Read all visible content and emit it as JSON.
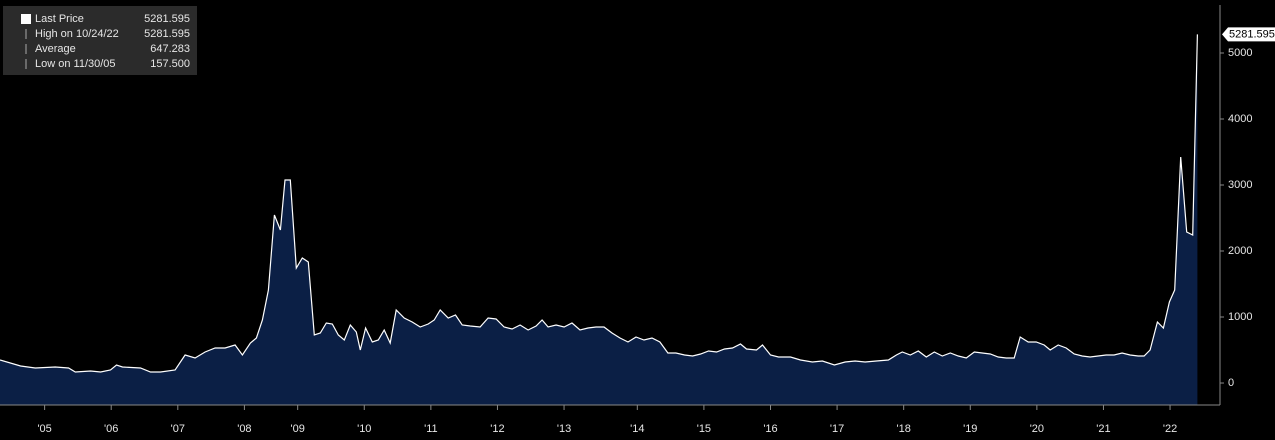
{
  "chart_data": {
    "type": "area",
    "legend": [
      {
        "label": "Last Price",
        "value": "5281.595"
      },
      {
        "label": "High on 10/24/22",
        "value": "5281.595"
      },
      {
        "label": "Average",
        "value": "647.283"
      },
      {
        "label": "Low on 11/30/05",
        "value": "157.500"
      }
    ],
    "x": [
      2004.83,
      2005.14,
      2005.36,
      2005.66,
      2005.86,
      2005.96,
      2006.19,
      2006.34,
      2006.49,
      2006.58,
      2006.67,
      2006.94,
      2007.09,
      2007.24,
      2007.46,
      2007.61,
      2007.76,
      2007.91,
      2008.06,
      2008.21,
      2008.36,
      2008.47,
      2008.59,
      2008.68,
      2008.77,
      2008.86,
      2008.95,
      2009.04,
      2009.11,
      2009.19,
      2009.28,
      2009.37,
      2009.46,
      2009.55,
      2009.64,
      2009.73,
      2009.82,
      2009.91,
      2010.0,
      2010.09,
      2010.18,
      2010.24,
      2010.32,
      2010.42,
      2010.51,
      2010.6,
      2010.69,
      2010.78,
      2010.9,
      2011.02,
      2011.14,
      2011.26,
      2011.35,
      2011.44,
      2011.56,
      2011.67,
      2011.77,
      2011.89,
      2012.04,
      2012.16,
      2012.28,
      2012.4,
      2012.52,
      2012.64,
      2012.76,
      2012.88,
      2012.97,
      2013.06,
      2013.18,
      2013.3,
      2013.42,
      2013.54,
      2013.66,
      2013.78,
      2013.9,
      2014.02,
      2014.14,
      2014.26,
      2014.38,
      2014.5,
      2014.62,
      2014.74,
      2014.86,
      2014.98,
      2015.11,
      2015.23,
      2015.35,
      2015.47,
      2015.59,
      2015.71,
      2015.83,
      2015.95,
      2016.04,
      2016.19,
      2016.28,
      2016.4,
      2016.52,
      2016.7,
      2016.85,
      2017.03,
      2017.18,
      2017.36,
      2017.52,
      2017.67,
      2017.82,
      2017.99,
      2018.17,
      2018.29,
      2018.38,
      2018.5,
      2018.62,
      2018.74,
      2018.86,
      2018.98,
      2019.1,
      2019.22,
      2019.34,
      2019.46,
      2019.58,
      2019.7,
      2019.82,
      2019.94,
      2020.06,
      2020.15,
      2020.27,
      2020.39,
      2020.51,
      2020.6,
      2020.72,
      2020.84,
      2020.96,
      2021.08,
      2021.2,
      2021.32,
      2021.44,
      2021.56,
      2021.68,
      2021.8,
      2021.92,
      2022.01,
      2022.1,
      2022.21,
      2022.3,
      2022.39,
      2022.47,
      2022.56,
      2022.65,
      2022.74,
      2022.81
    ],
    "series": [
      {
        "color": "#ffffff",
        "fill": "#0b1f45",
        "values": [
          348,
          258,
          227,
          242,
          227,
          167,
          182,
          167,
          197,
          273,
          242,
          227,
          167,
          167,
          197,
          424,
          379,
          470,
          530,
          530,
          576,
          424,
          606,
          682,
          955,
          1409,
          2545,
          2318,
          3075,
          3075,
          1742,
          1894,
          1833,
          727,
          758,
          909,
          894,
          727,
          651,
          879,
          773,
          500,
          833,
          621,
          651,
          803,
          606,
          1106,
          985,
          924,
          848,
          894,
          955,
          1106,
          985,
          1030,
          879,
          864,
          848,
          985,
          970,
          848,
          818,
          879,
          803,
          864,
          955,
          848,
          879,
          848,
          909,
          803,
          833,
          848,
          848,
          758,
          682,
          621,
          697,
          651,
          682,
          621,
          455,
          455,
          424,
          409,
          439,
          485,
          470,
          515,
          530,
          591,
          515,
          500,
          576,
          424,
          394,
          394,
          348,
          318,
          333,
          273,
          318,
          333,
          318,
          333,
          348,
          424,
          470,
          424,
          485,
          394,
          470,
          409,
          455,
          409,
          379,
          470,
          455,
          439,
          394,
          379,
          379,
          697,
          621,
          621,
          576,
          500,
          576,
          530,
          439,
          409,
          394,
          409,
          424,
          424,
          455,
          424,
          409,
          409,
          500,
          924,
          833,
          1227,
          1409,
          3424,
          2288,
          2242,
          5281.595
        ]
      }
    ],
    "xlim": [
      2004.83,
      2023.15
    ],
    "ylim": [
      -333,
      5727
    ],
    "yticks": [
      0,
      1000,
      2000,
      3000,
      4000,
      5000
    ],
    "xticks": [
      {
        "value": 2005.5,
        "label": "'05"
      },
      {
        "value": 2006.5,
        "label": "'06"
      },
      {
        "value": 2007.5,
        "label": "'07"
      },
      {
        "value": 2008.5,
        "label": "'08"
      },
      {
        "value": 2009.3,
        "label": "'09"
      },
      {
        "value": 2010.3,
        "label": "'10"
      },
      {
        "value": 2011.3,
        "label": "'11"
      },
      {
        "value": 2012.3,
        "label": "'12"
      },
      {
        "value": 2013.3,
        "label": "'13"
      },
      {
        "value": 2014.4,
        "label": "'14"
      },
      {
        "value": 2015.4,
        "label": "'15"
      },
      {
        "value": 2016.4,
        "label": "'16"
      },
      {
        "value": 2017.4,
        "label": "'17"
      },
      {
        "value": 2018.4,
        "label": "'18"
      },
      {
        "value": 2019.4,
        "label": "'19"
      },
      {
        "value": 2020.4,
        "label": "'20"
      },
      {
        "value": 2021.4,
        "label": "'21"
      },
      {
        "value": 2022.4,
        "label": "'22"
      }
    ]
  }
}
